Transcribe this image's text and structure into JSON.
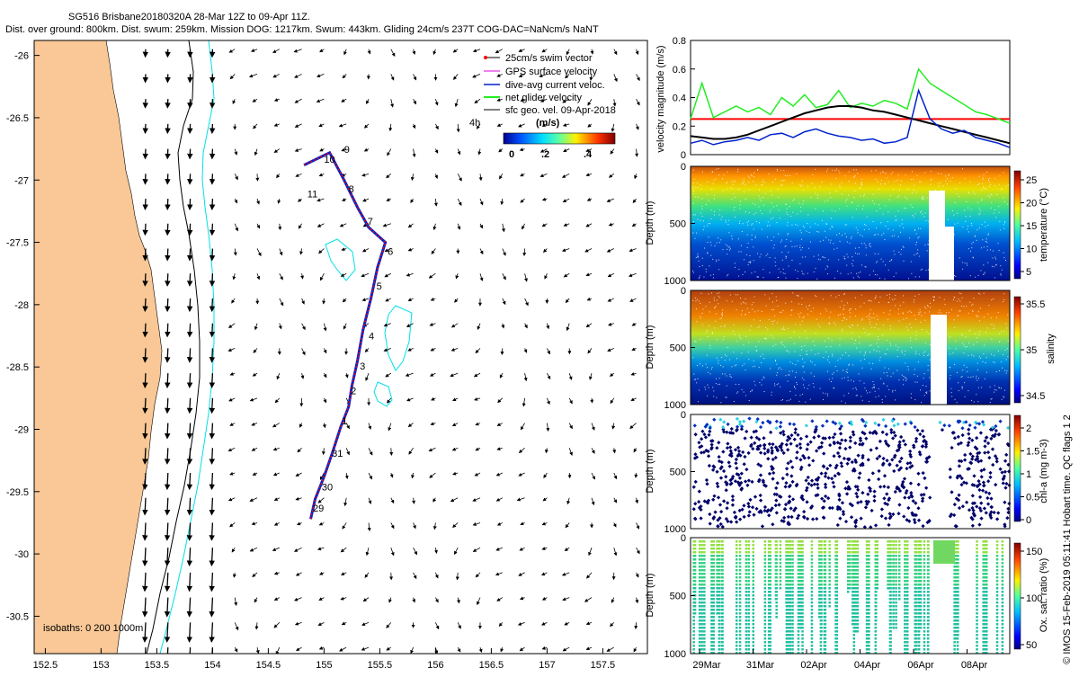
{
  "colors": {
    "land": "#F9C896",
    "cyan": "#00E0E8",
    "red": "#FF0000",
    "black": "#000000",
    "blue": "#0022CC",
    "green": "#22EE22",
    "magenta": "#DD00DD",
    "pale": "#CCCCCC"
  },
  "chart_data": [
    {
      "type": "scatter",
      "name": "glider-track-map",
      "title_line1": "SG516 Brisbane20180320A 28-Mar 12Z to 09-Apr 11Z.",
      "title_line2": "Dist. over ground: 800km. Dist. swum: 259km. Mission DOG: 1217km. Swum: 443km. Gliding 24cm/s 237T COG-DAC=NaNcm/s NaNT",
      "xlim": [
        152.4,
        157.9
      ],
      "ylim": [
        -30.8,
        -25.88
      ],
      "xticks": [
        152.5,
        153,
        153.5,
        154,
        154.5,
        155,
        155.5,
        156,
        156.5,
        157,
        157.5
      ],
      "xtick_labels": [
        "152.5",
        "153",
        "153.5",
        "154",
        "154.5",
        "155",
        "155.5",
        "156",
        "156.5",
        "157",
        "157.5"
      ],
      "yticks": [
        -26,
        -26.5,
        -27,
        -27.5,
        -28,
        -28.5,
        -29,
        -29.5,
        -30,
        -30.5
      ],
      "ytick_labels": [
        "-26",
        "-26.5",
        "-27",
        "-27.5",
        "-28",
        "-28.5",
        "-29",
        "-29.5",
        "-30",
        "-30.5"
      ],
      "legend": [
        "25cm/s swim vector",
        "GPS surface velocity",
        "dive-avg current veloc.",
        "net glider velocity",
        "sfc geo. vel. 09-Apr-2018"
      ],
      "legend_extra": "4h",
      "colorbar": {
        "title": "(m/s)",
        "ticks": [
          "0",
          ".2",
          ".4"
        ]
      },
      "isobath_label": "isobaths: 0   200  1000m",
      "track": [
        [
          154.88,
          -29.72
        ],
        [
          154.92,
          -29.56
        ],
        [
          155.0,
          -29.38
        ],
        [
          155.07,
          -29.2
        ],
        [
          155.15,
          -28.98
        ],
        [
          155.22,
          -28.82
        ],
        [
          155.25,
          -28.65
        ],
        [
          155.3,
          -28.45
        ],
        [
          155.35,
          -28.2
        ],
        [
          155.42,
          -27.95
        ],
        [
          155.48,
          -27.7
        ],
        [
          155.55,
          -27.5
        ],
        [
          155.4,
          -27.38
        ],
        [
          155.3,
          -27.22
        ],
        [
          155.18,
          -27.0
        ],
        [
          155.05,
          -26.78
        ],
        [
          154.82,
          -26.88
        ]
      ],
      "day_labels": [
        {
          "t": "29",
          "x": 154.9,
          "y": -29.66
        },
        {
          "t": "30",
          "x": 154.98,
          "y": -29.49
        },
        {
          "t": "31",
          "x": 155.07,
          "y": -29.22
        },
        {
          "t": "1",
          "x": 155.16,
          "y": -28.96
        },
        {
          "t": "2",
          "x": 155.24,
          "y": -28.72
        },
        {
          "t": "3",
          "x": 155.32,
          "y": -28.52
        },
        {
          "t": "4",
          "x": 155.4,
          "y": -28.28
        },
        {
          "t": "5",
          "x": 155.47,
          "y": -27.88
        },
        {
          "t": "6",
          "x": 155.57,
          "y": -27.6
        },
        {
          "t": "7",
          "x": 155.39,
          "y": -27.36
        },
        {
          "t": "8",
          "x": 155.22,
          "y": -27.1
        },
        {
          "t": "9",
          "x": 155.18,
          "y": -26.78
        },
        {
          "t": "10",
          "x": 155.0,
          "y": -26.86
        },
        {
          "t": "11",
          "x": 154.85,
          "y": -27.14
        }
      ]
    },
    {
      "type": "line",
      "name": "velocity-panel",
      "ylabel": "velocity magnitude (m/s)",
      "ylim": [
        0,
        0.8
      ],
      "yticks": [
        "0",
        "0.2",
        "0.4",
        "0.6",
        "0.8"
      ],
      "threshold": 0.25,
      "series": [
        {
          "name": "net glider velocity",
          "color": "green",
          "values": [
            0.25,
            0.5,
            0.26,
            0.3,
            0.34,
            0.3,
            0.33,
            0.28,
            0.4,
            0.34,
            0.42,
            0.33,
            0.35,
            0.45,
            0.33,
            0.36,
            0.34,
            0.38,
            0.36,
            0.32,
            0.6,
            0.5,
            0.45,
            0.4,
            0.35,
            0.3,
            0.28,
            0.25,
            0.22
          ]
        },
        {
          "name": "sfc geo. vel.",
          "color": "black",
          "values": [
            0.13,
            0.12,
            0.11,
            0.11,
            0.12,
            0.14,
            0.17,
            0.2,
            0.23,
            0.26,
            0.29,
            0.31,
            0.33,
            0.34,
            0.34,
            0.33,
            0.31,
            0.3,
            0.28,
            0.26,
            0.24,
            0.22,
            0.2,
            0.18,
            0.16,
            0.14,
            0.12,
            0.1,
            0.08
          ]
        },
        {
          "name": "dive-avg current",
          "color": "blue",
          "values": [
            0.08,
            0.1,
            0.07,
            0.09,
            0.1,
            0.12,
            0.1,
            0.14,
            0.15,
            0.12,
            0.16,
            0.18,
            0.15,
            0.13,
            0.12,
            0.1,
            0.11,
            0.08,
            0.09,
            0.12,
            0.45,
            0.25,
            0.18,
            0.15,
            0.17,
            0.12,
            0.1,
            0.08,
            0.05
          ]
        }
      ]
    },
    {
      "type": "heatmap",
      "name": "temperature-panel",
      "ylabel": "Depth (m)",
      "cbar_label": "temperature (°C)",
      "cbar_ticks": [
        "25",
        "20",
        "15",
        "10",
        "5"
      ],
      "yticks": [
        "0",
        "500",
        "1000"
      ]
    },
    {
      "type": "heatmap",
      "name": "salinity-panel",
      "ylabel": "Depth (m)",
      "cbar_label": "salinity",
      "cbar_ticks": [
        "35.5",
        "35",
        "34.5"
      ],
      "yticks": [
        "0",
        "500",
        "1000"
      ]
    },
    {
      "type": "scatter",
      "name": "chla-panel",
      "ylabel": "Depth (m)",
      "cbar_label": "chl-a (mg m-3)",
      "cbar_ticks": [
        "2",
        "1.5",
        "1",
        "0.5",
        "0"
      ],
      "yticks": [
        "0",
        "500",
        "1000"
      ]
    },
    {
      "type": "scatter",
      "name": "oxygen-panel",
      "ylabel": "Depth (m)",
      "cbar_label": "Ox. sat. ratio (%)",
      "cbar_ticks": [
        "150",
        "100",
        "50"
      ],
      "yticks": [
        "0",
        "500",
        "1000"
      ],
      "xtick_labels": [
        "29Mar",
        "31Mar",
        "02Apr",
        "04Apr",
        "06Apr",
        "08Apr"
      ]
    }
  ],
  "footer_text": "© IMOS 15-Feb-2019 05:11:41 Hobart time. QC flags 1  2"
}
